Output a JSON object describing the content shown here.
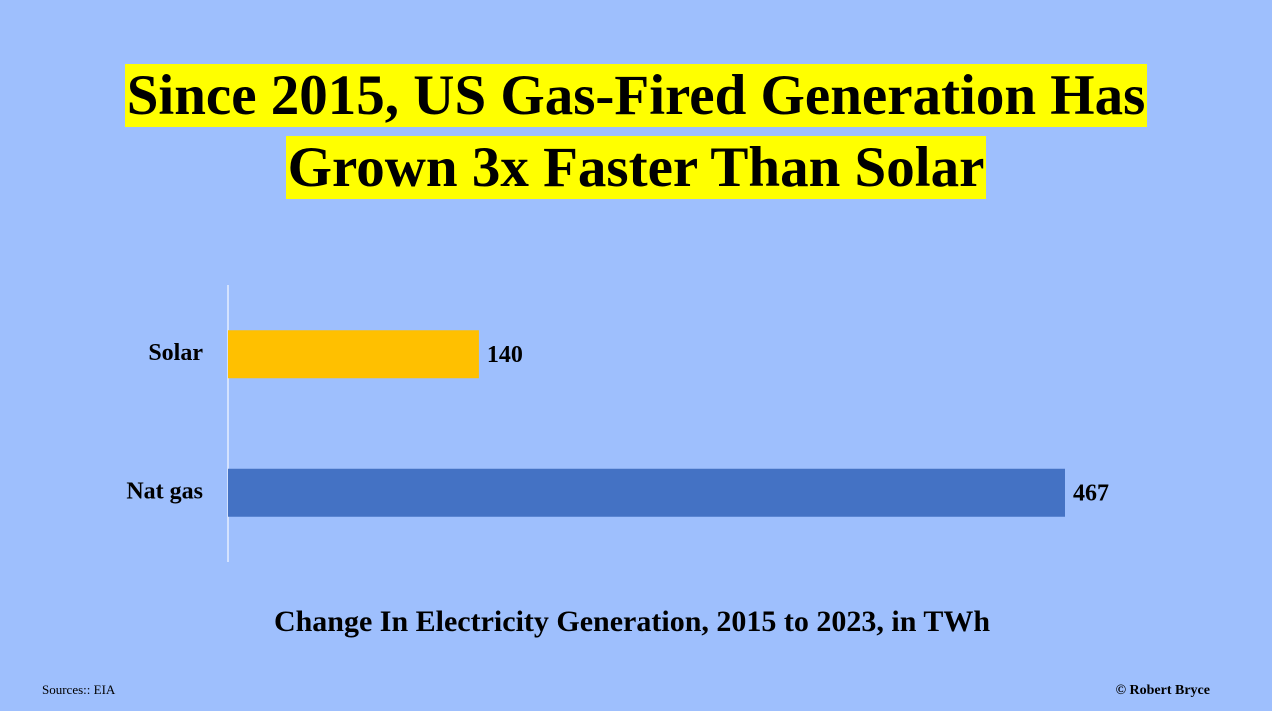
{
  "chart_data": {
    "type": "bar",
    "orientation": "horizontal",
    "title": "Since 2015, US Gas-Fired Generation Has Grown 3x Faster Than Solar",
    "x_label": "Change In Electricity Generation, 2015 to 2023, in TWh",
    "categories": [
      "Solar",
      "Nat gas"
    ],
    "values": [
      140,
      467
    ],
    "colors": [
      "#ffc000",
      "#4472c4"
    ],
    "source": "Sources:: EIA",
    "credit": "© Robert Bryce"
  }
}
